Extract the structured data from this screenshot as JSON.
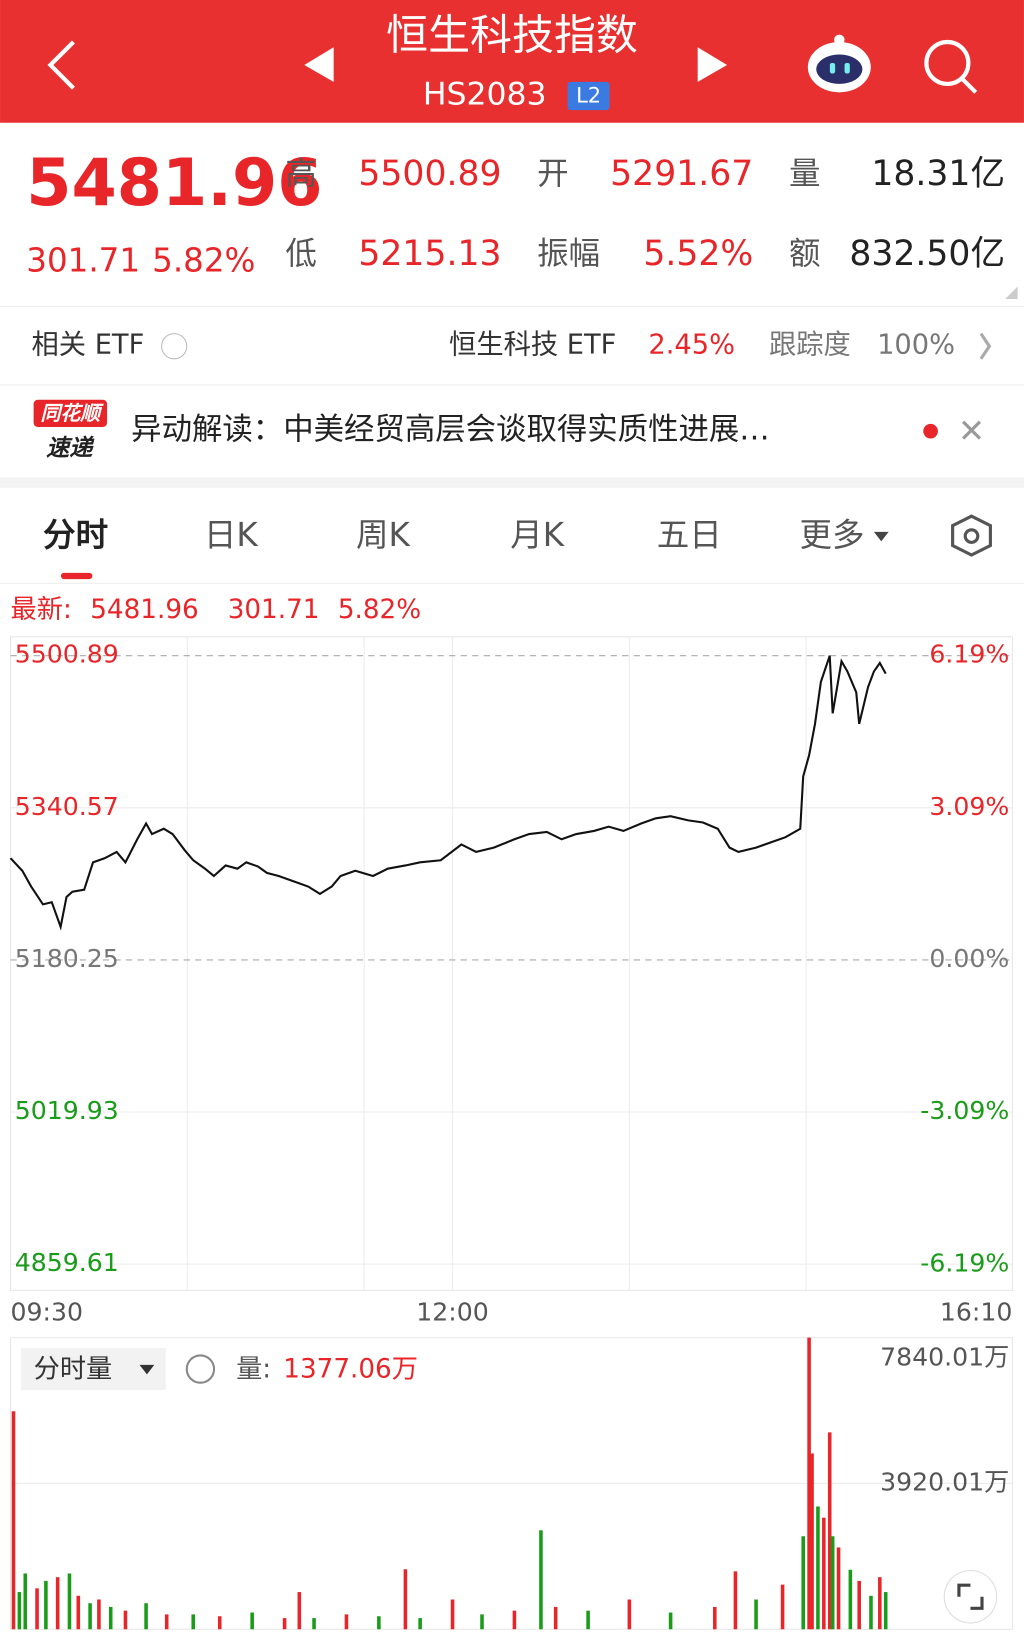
{
  "header": {
    "title": "恒生科技指数",
    "code": "HS2083",
    "badge": "L2"
  },
  "quote": {
    "price": "5481.96",
    "change": "301.71",
    "change_pct": "5.82%",
    "fields": [
      {
        "label": "高",
        "value": "5500.89"
      },
      {
        "label": "开",
        "value": "5291.67"
      },
      {
        "label": "量",
        "value": "18.31亿"
      },
      {
        "label": "低",
        "value": "5215.13"
      },
      {
        "label": "振幅",
        "value": "5.52%"
      },
      {
        "label": "额",
        "value": "832.50亿"
      }
    ]
  },
  "etf": {
    "label": "相关 ETF",
    "name": "恒生科技 ETF",
    "change": "2.45%",
    "tracking_label": "跟踪度",
    "tracking": "100%"
  },
  "news": {
    "logo_top": "同花顺",
    "logo_bottom": "速递",
    "text": "异动解读：中美经贸高层会谈取得实质性进展…"
  },
  "tabs": [
    "分时",
    "日K",
    "周K",
    "月K",
    "五日",
    "更多"
  ],
  "latest": {
    "label": "最新:",
    "price": "5481.96",
    "change": "301.71",
    "change_pct": "5.82%"
  },
  "volume_header": {
    "selector": "分时量",
    "label": "量:",
    "value": "1377.06万"
  },
  "chart_data": [
    {
      "type": "line",
      "color": "#111111",
      "x": [
        0,
        4,
        7,
        11,
        14,
        17,
        19,
        21,
        25,
        28,
        32,
        36,
        39,
        43,
        46,
        48,
        52,
        55,
        59,
        62,
        66,
        69,
        73,
        77,
        80,
        84,
        87,
        91,
        96,
        101,
        105,
        109,
        112,
        117,
        123,
        128,
        134,
        139,
        146,
        153,
        158,
        164,
        171,
        176,
        182,
        187,
        192,
        198,
        203,
        208,
        214,
        219,
        224,
        230,
        235,
        240,
        244,
        247,
        253,
        258,
        263,
        268,
        269,
        271,
        273,
        275,
        278,
        279,
        282,
        284,
        287,
        288,
        291,
        293,
        295,
        297
      ],
      "values": [
        5287.5,
        5274.2,
        5257.6,
        5238.8,
        5241.1,
        5215.13,
        5246.6,
        5252.1,
        5254.3,
        5283.1,
        5287.5,
        5294.1,
        5283.1,
        5307.4,
        5324.0,
        5312.9,
        5318.5,
        5312.9,
        5296.3,
        5285.3,
        5276.4,
        5268.7,
        5279.8,
        5276.4,
        5283.1,
        5278.7,
        5272.0,
        5268.7,
        5263.2,
        5257.6,
        5249.9,
        5257.6,
        5268.7,
        5274.2,
        5268.7,
        5276.4,
        5279.8,
        5283.1,
        5285.3,
        5301.9,
        5294.1,
        5298.6,
        5307.4,
        5312.9,
        5315.1,
        5307.4,
        5312.9,
        5316.2,
        5320.7,
        5316.2,
        5324.0,
        5329.5,
        5331.7,
        5327.3,
        5325.1,
        5318.5,
        5298.6,
        5294.1,
        5298.6,
        5304.1,
        5309.6,
        5318.5,
        5373.7,
        5395.9,
        5429.0,
        5473.3,
        5500.89,
        5440.1,
        5495.0,
        5484.3,
        5462.2,
        5429.0,
        5467.7,
        5484.3,
        5493.2,
        5481.96
      ],
      "xlim": [
        0,
        340
      ],
      "xticks": [
        {
          "value": 0,
          "label": "09:30"
        },
        {
          "value": 150,
          "label": "12:00"
        },
        {
          "value": 340,
          "label": "16:10"
        }
      ],
      "xgrid": [
        60,
        120,
        150,
        210,
        270
      ],
      "ylim": [
        4831.94,
        5520.79
      ],
      "yticks": [
        5500.89,
        5340.57,
        5180.25,
        5019.93,
        4859.61
      ],
      "y2lim": [
        -6.72,
        6.57
      ],
      "y2ticks": [
        {
          "value": 6.19,
          "label": "6.19%"
        },
        {
          "value": 3.09,
          "label": "3.09%"
        },
        {
          "value": 0,
          "label": "0.00%"
        },
        {
          "value": -3.09,
          "label": "-3.09%"
        },
        {
          "value": -6.19,
          "label": "-6.19%"
        }
      ]
    },
    {
      "type": "bar",
      "x": [
        1,
        3,
        5,
        9,
        12,
        16,
        20,
        23,
        27,
        30,
        34,
        39,
        46,
        53,
        62,
        71,
        82,
        93,
        98,
        103,
        114,
        125,
        134,
        139,
        150,
        160,
        171,
        180,
        185,
        196,
        210,
        224,
        239,
        246,
        253,
        262,
        269,
        271,
        272,
        274,
        276,
        278,
        279,
        281,
        285,
        288,
        292,
        295,
        297
      ],
      "values": [
        5860,
        1000,
        1500,
        1100,
        1300,
        1400,
        1500,
        900,
        700,
        800,
        600,
        500,
        700,
        400,
        400,
        350,
        450,
        300,
        1000,
        300,
        400,
        350,
        1613,
        300,
        800,
        400,
        500,
        2660,
        600,
        500,
        800,
        450,
        600,
        1557,
        800,
        1200,
        2500,
        7840,
        4727,
        3300,
        3000,
        5293,
        2500,
        2200,
        1600,
        1300,
        900,
        1400,
        1000
      ],
      "colors": [
        "#e8262a",
        "#1a9c1a",
        "#1a9c1a",
        "#e8262a",
        "#1a9c1a",
        "#e8262a",
        "#1a9c1a",
        "#e8262a",
        "#1a9c1a",
        "#e8262a",
        "#1a9c1a",
        "#e8262a",
        "#1a9c1a",
        "#e8262a",
        "#1a9c1a",
        "#e8262a",
        "#1a9c1a",
        "#e8262a",
        "#e8262a",
        "#1a9c1a",
        "#e8262a",
        "#1a9c1a",
        "#e8262a",
        "#1a9c1a",
        "#e8262a",
        "#1a9c1a",
        "#e8262a",
        "#1a9c1a",
        "#e8262a",
        "#1a9c1a",
        "#e8262a",
        "#1a9c1a",
        "#e8262a",
        "#e8262a",
        "#1a9c1a",
        "#e8262a",
        "#1a9c1a",
        "#e8262a",
        "#e8262a",
        "#1a9c1a",
        "#e8262a",
        "#e8262a",
        "#1a9c1a",
        "#e8262a",
        "#1a9c1a",
        "#e8262a",
        "#1a9c1a",
        "#e8262a",
        "#1a9c1a"
      ],
      "xlim": [
        0,
        340
      ],
      "ylim": [
        0,
        7840.01
      ],
      "yticks": [
        {
          "value": 7840.01,
          "label": "7840.01万"
        },
        {
          "value": 3920.01,
          "label": "3920.01万"
        }
      ]
    }
  ]
}
